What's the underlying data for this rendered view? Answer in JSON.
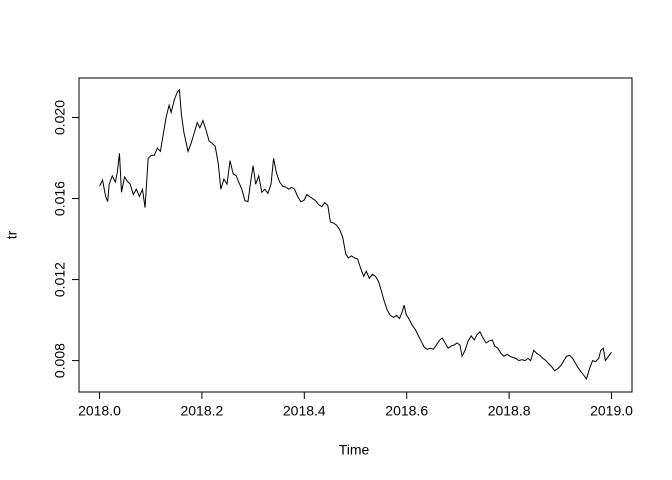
{
  "chart_data": {
    "type": "line",
    "x_label": "Time",
    "y_label": "tr",
    "color": "#000000",
    "grid": false,
    "xlim": [
      2017.96,
      2019.04
    ],
    "ylim": [
      0.00645,
      0.02195
    ],
    "xticks": [
      {
        "value": 2018,
        "label": "2018.0"
      },
      2018.2,
      2018.4,
      2018.6,
      2018.8,
      {
        "value": 2019,
        "label": "2019.0"
      }
    ],
    "yticks": [
      0.008,
      0.012,
      0.016,
      {
        "value": 0.02,
        "label": "0.020"
      }
    ],
    "x": [
      2018.0,
      2018.006,
      2018.012,
      2018.016,
      2018.019,
      2018.025,
      2018.031,
      2018.035,
      2018.039,
      2018.043,
      2018.049,
      2018.054,
      2018.06,
      2018.066,
      2018.072,
      2018.078,
      2018.084,
      2018.089,
      2018.095,
      2018.101,
      2018.107,
      2018.113,
      2018.119,
      2018.125,
      2018.13,
      2018.136,
      2018.14,
      2018.146,
      2018.152,
      2018.156,
      2018.16,
      2018.165,
      2018.173,
      2018.179,
      2018.185,
      2018.191,
      2018.196,
      2018.202,
      2018.208,
      2018.214,
      2018.22,
      2018.226,
      2018.232,
      2018.237,
      2018.243,
      2018.249,
      2018.255,
      2018.261,
      2018.267,
      2018.272,
      2018.278,
      2018.284,
      2018.29,
      2018.296,
      2018.3,
      2018.305,
      2018.311,
      2018.317,
      2018.323,
      2018.329,
      2018.335,
      2018.34,
      2018.346,
      2018.352,
      2018.358,
      2018.364,
      2018.37,
      2018.375,
      2018.381,
      2018.387,
      2018.393,
      2018.399,
      2018.405,
      2018.41,
      2018.416,
      2018.422,
      2018.428,
      2018.434,
      2018.44,
      2018.446,
      2018.451,
      2018.457,
      2018.463,
      2018.469,
      2018.475,
      2018.481,
      2018.486,
      2018.492,
      2018.498,
      2018.504,
      2018.51,
      2018.516,
      2018.521,
      2018.527,
      2018.533,
      2018.539,
      2018.545,
      2018.551,
      2018.556,
      2018.562,
      2018.568,
      2018.574,
      2018.58,
      2018.586,
      2018.591,
      2018.595,
      2018.599,
      2018.605,
      2018.611,
      2018.617,
      2018.623,
      2018.628,
      2018.634,
      2018.64,
      2018.646,
      2018.652,
      2018.658,
      2018.663,
      2018.669,
      2018.675,
      2018.681,
      2018.687,
      2018.693,
      2018.698,
      2018.704,
      2018.708,
      2018.714,
      2018.72,
      2018.726,
      2018.732,
      2018.737,
      2018.743,
      2018.749,
      2018.755,
      2018.761,
      2018.767,
      2018.772,
      2018.778,
      2018.784,
      2018.79,
      2018.796,
      2018.802,
      2018.807,
      2018.813,
      2018.819,
      2018.825,
      2018.831,
      2018.837,
      2018.842,
      2018.848,
      2018.854,
      2018.86,
      2018.866,
      2018.872,
      2018.877,
      2018.883,
      2018.889,
      2018.895,
      2018.901,
      2018.907,
      2018.912,
      2018.918,
      2018.924,
      2018.93,
      2018.936,
      2018.942,
      2018.947,
      2018.951,
      2018.957,
      2018.963,
      2018.969,
      2018.975,
      2018.979,
      2018.984,
      2018.988,
      2018.994,
      2019.0
    ],
    "values": [
      0.01661,
      0.01691,
      0.0161,
      0.01585,
      0.01671,
      0.01712,
      0.01681,
      0.01732,
      0.01823,
      0.01631,
      0.01707,
      0.01686,
      0.01671,
      0.0162,
      0.01646,
      0.0161,
      0.01646,
      0.01555,
      0.01798,
      0.01813,
      0.01813,
      0.01848,
      0.01833,
      0.01924,
      0.02,
      0.02061,
      0.02025,
      0.02086,
      0.02126,
      0.02137,
      0.02015,
      0.01924,
      0.01833,
      0.01873,
      0.01924,
      0.01975,
      0.01949,
      0.01985,
      0.01939,
      0.01884,
      0.01873,
      0.01858,
      0.01772,
      0.01646,
      0.01696,
      0.01671,
      0.01787,
      0.01722,
      0.01712,
      0.01681,
      0.01646,
      0.0159,
      0.01585,
      0.01696,
      0.01762,
      0.01671,
      0.01712,
      0.01631,
      0.01646,
      0.01626,
      0.01671,
      0.01798,
      0.01722,
      0.01681,
      0.01661,
      0.01656,
      0.01646,
      0.01656,
      0.01646,
      0.0161,
      0.01585,
      0.0159,
      0.0162,
      0.0161,
      0.016,
      0.0159,
      0.0157,
      0.0156,
      0.0158,
      0.01565,
      0.01484,
      0.01479,
      0.01469,
      0.01448,
      0.01408,
      0.01327,
      0.01307,
      0.01317,
      0.01307,
      0.01302,
      0.01256,
      0.01216,
      0.01241,
      0.01206,
      0.01226,
      0.01216,
      0.0119,
      0.0114,
      0.01094,
      0.01049,
      0.01023,
      0.01013,
      0.01023,
      0.01008,
      0.01039,
      0.01074,
      0.01028,
      0.01003,
      0.00973,
      0.00953,
      0.00922,
      0.00897,
      0.00867,
      0.00856,
      0.00861,
      0.00856,
      0.00877,
      0.00897,
      0.00912,
      0.00887,
      0.00861,
      0.00872,
      0.00877,
      0.00887,
      0.00877,
      0.00821,
      0.00851,
      0.00897,
      0.00922,
      0.00902,
      0.00927,
      0.00942,
      0.00912,
      0.00887,
      0.00897,
      0.00902,
      0.00872,
      0.00861,
      0.00836,
      0.00821,
      0.00831,
      0.00821,
      0.00816,
      0.00811,
      0.008,
      0.00805,
      0.008,
      0.00811,
      0.008,
      0.00851,
      0.00836,
      0.00826,
      0.00811,
      0.008,
      0.00785,
      0.0077,
      0.0075,
      0.0076,
      0.00775,
      0.008,
      0.00821,
      0.00826,
      0.00811,
      0.00785,
      0.0076,
      0.0074,
      0.00724,
      0.00709,
      0.0076,
      0.008,
      0.00795,
      0.00811,
      0.00851,
      0.00861,
      0.008,
      0.00821,
      0.00841
    ]
  }
}
